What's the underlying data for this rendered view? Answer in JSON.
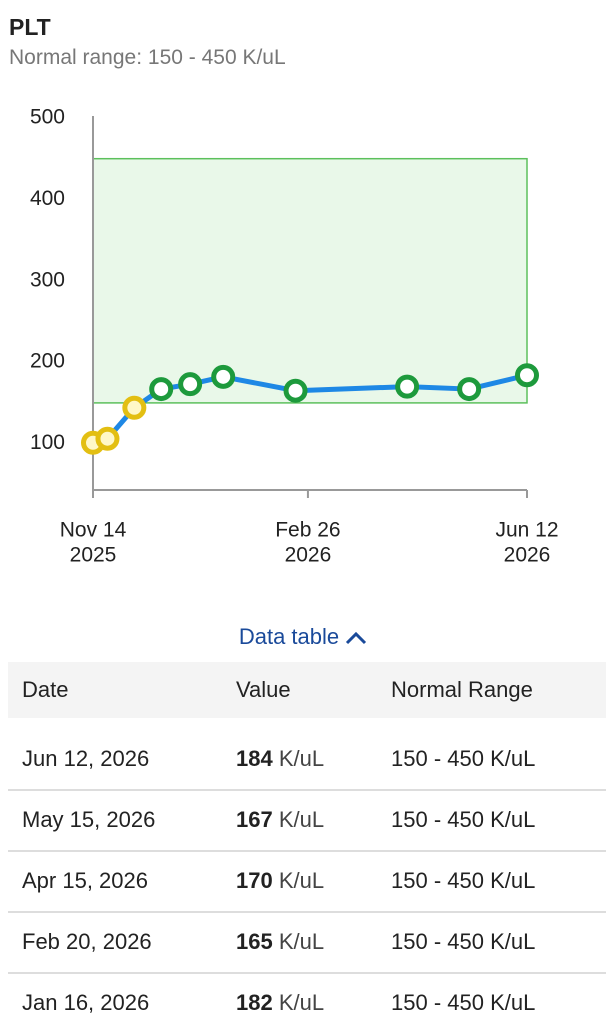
{
  "header": {
    "title": "PLT",
    "subtitle": "Normal range: 150 - 450 K/uL"
  },
  "chart_data": {
    "type": "line",
    "x": [
      "2025-11-14",
      "2025-11-21",
      "2025-12-04",
      "2025-12-17",
      "2025-12-31",
      "2026-01-16",
      "2026-02-20",
      "2026-04-15",
      "2026-05-15",
      "2026-06-12"
    ],
    "values": [
      101,
      106,
      144,
      167,
      173,
      182,
      165,
      170,
      167,
      184
    ],
    "color": "#1e88e5",
    "normal_range": [
      150,
      450
    ],
    "range_fill": "#e9f8e9",
    "range_stroke": "#5cc05c",
    "in_range_color": "#1d9a3c",
    "out_of_range_color": "#e3bf12",
    "xlim": [
      "2025-11-14",
      "2026-06-12"
    ],
    "xticks": [
      {
        "value": "2025-11-14",
        "label": [
          "Nov 14",
          "2025"
        ]
      },
      {
        "value": "2026-02-26",
        "label": [
          "Feb 26",
          "2026"
        ]
      },
      {
        "value": "2026-06-12",
        "label": [
          "Jun 12",
          "2026"
        ]
      }
    ],
    "ylim": [
      43,
      500
    ],
    "yticks": [
      100,
      200,
      300,
      400,
      500
    ]
  },
  "toggle": "Data table",
  "table": {
    "header": [
      "Date",
      "Value",
      "Normal Range"
    ],
    "rows": [
      {
        "date": "Jun 12, 2026",
        "value": 184,
        "unit": "K/uL",
        "range": "150 - 450 K/uL"
      },
      {
        "date": "May 15, 2026",
        "value": 167,
        "unit": "K/uL",
        "range": "150 - 450 K/uL"
      },
      {
        "date": "Apr 15, 2026",
        "value": 170,
        "unit": "K/uL",
        "range": "150 - 450 K/uL"
      },
      {
        "date": "Feb 20, 2026",
        "value": 165,
        "unit": "K/uL",
        "range": "150 - 450 K/uL"
      },
      {
        "date": "Jan 16, 2026",
        "value": 182,
        "unit": "K/uL",
        "range": "150 - 450 K/uL"
      }
    ]
  }
}
